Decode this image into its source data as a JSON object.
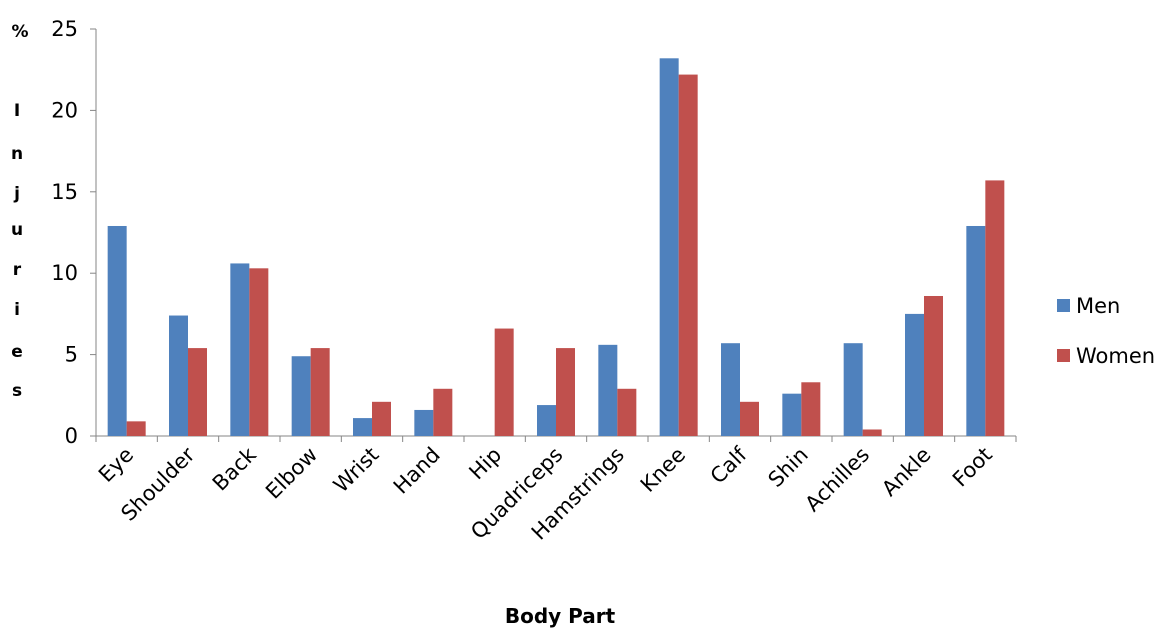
{
  "chart_data": {
    "type": "bar",
    "categories": [
      "Eye",
      "Shoulder",
      "Back",
      "Elbow",
      "Wrist",
      "Hand",
      "Hip",
      "Quadriceps",
      "Hamstrings",
      "Knee",
      "Calf",
      "Shin",
      "Achilles",
      "Ankle",
      "Foot"
    ],
    "series": [
      {
        "name": "Men",
        "color": "#4F81BD",
        "values": [
          12.9,
          7.4,
          10.6,
          4.9,
          1.1,
          1.6,
          0,
          1.9,
          5.6,
          23.2,
          5.7,
          2.6,
          5.7,
          7.5,
          12.9
        ]
      },
      {
        "name": "Women",
        "color": "#C0504D",
        "values": [
          0.9,
          5.4,
          10.3,
          5.4,
          2.1,
          2.9,
          6.6,
          5.4,
          2.9,
          22.2,
          2.1,
          3.3,
          0.4,
          8.6,
          15.7
        ]
      }
    ],
    "ylabel": "% Injuries",
    "ylabel_prefix": "%",
    "ylabel_chars": [
      "I",
      "n",
      "j",
      "u",
      "r",
      "i",
      "e",
      "s"
    ],
    "xlabel": "Body Part",
    "ylim": [
      0,
      25
    ],
    "yticks": [
      "0",
      "5",
      "10",
      "15",
      "20",
      "25"
    ],
    "grid": false,
    "legend_position": "right"
  }
}
